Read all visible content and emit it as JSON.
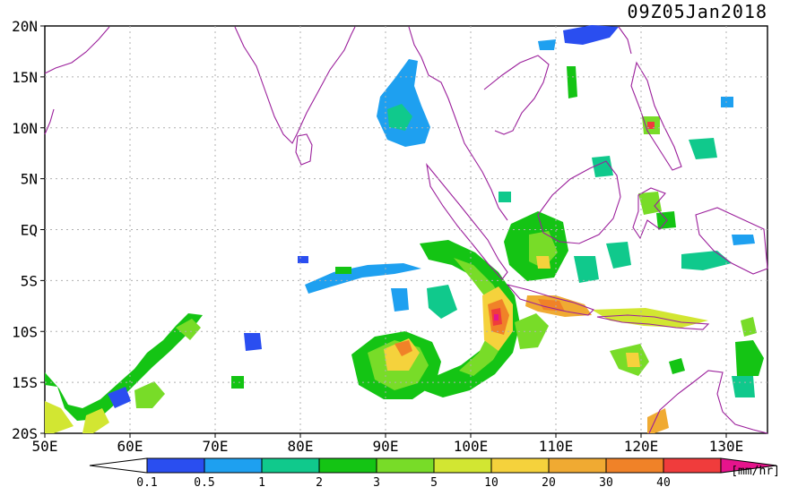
{
  "title": "09Z05Jan2018",
  "lat_labels": [
    "20N",
    "15N",
    "10N",
    "5N",
    "EQ",
    "5S",
    "10S",
    "15S",
    "20S"
  ],
  "lon_labels": [
    "50E",
    "60E",
    "70E",
    "80E",
    "90E",
    "100E",
    "110E",
    "120E",
    "130E"
  ],
  "colorbar": {
    "unit": "[mm/hr]",
    "ticks": [
      "0.1",
      "0.5",
      "1",
      "2",
      "3",
      "5",
      "10",
      "20",
      "30",
      "40"
    ],
    "colors": [
      "#2a4ef0",
      "#1ea0f0",
      "#10c98c",
      "#14c414",
      "#78dc28",
      "#d2e632",
      "#f5d23c",
      "#f0aa32",
      "#f08228",
      "#f03c3c",
      "#e6148c"
    ]
  },
  "colors": {
    "coastline": "#9b1f9b",
    "grid": "#b0b0b0"
  }
}
